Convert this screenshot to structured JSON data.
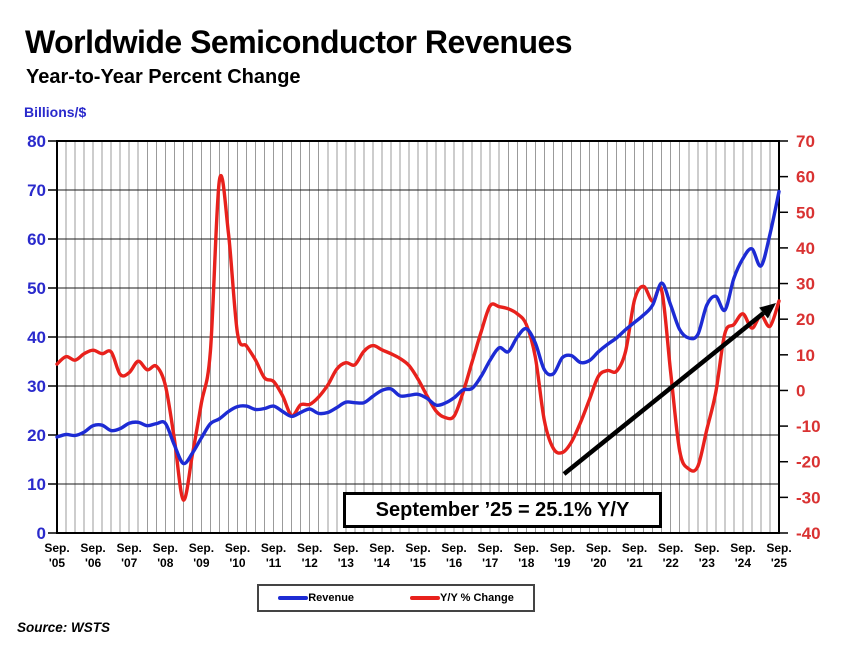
{
  "header": {
    "title": "Worldwide Semiconductor Revenues",
    "subtitle": "Year-to-Year Percent Change"
  },
  "axis_unit_label": "Billions/$",
  "source_note": "Source: WSTS",
  "annotation": {
    "text": "September ’25 = 25.1% Y/Y"
  },
  "legend": {
    "items": [
      {
        "label": "Revenue",
        "color": "#1d2bd4"
      },
      {
        "label": "Y/Y % Change",
        "color": "#e8211c"
      }
    ]
  },
  "colors": {
    "revenue_line": "#1d2bd4",
    "yoy_line": "#e8211c",
    "left_axis_text": "#2a2acc",
    "right_axis_text": "#d93232",
    "grid_vertical": "#9b9b9b",
    "grid_horizontal": "#1a1a1a",
    "frame": "#000000",
    "arrow": "#000000",
    "x_label_text": "#000000"
  },
  "chart_data": {
    "type": "line",
    "title": "Worldwide Semiconductor Revenues",
    "subtitle": "Year-to-Year Percent Change",
    "x_interval": "quarterly",
    "x_start": "Sep 2005",
    "x_end": "Sep 2025",
    "x_tick_month": "Sep.",
    "x_tick_years": [
      "'05",
      "'06",
      "'07",
      "'08",
      "'09",
      "'10",
      "'11",
      "'12",
      "'13",
      "'14",
      "'15",
      "'16",
      "'17",
      "'18",
      "'19",
      "'20",
      "'21",
      "'22",
      "'23",
      "'24",
      "'25"
    ],
    "left_axis": {
      "label": "Billions/$",
      "range": [
        0,
        80
      ],
      "ticks": [
        0,
        10,
        20,
        30,
        40,
        50,
        60,
        70,
        80
      ]
    },
    "right_axis": {
      "label": "Y/Y % Change",
      "range": [
        -40,
        70
      ],
      "ticks": [
        -40,
        -30,
        -20,
        -10,
        0,
        10,
        20,
        30,
        40,
        50,
        60,
        70
      ]
    },
    "grid": {
      "vertical": "quarterly",
      "horizontal": "every-10-left"
    },
    "legend_position": "bottom",
    "series": [
      {
        "name": "Revenue",
        "axis": "left",
        "color": "#1d2bd4",
        "values": [
          19.6,
          20.1,
          19.9,
          20.6,
          21.9,
          22.0,
          20.9,
          21.3,
          22.4,
          22.6,
          21.9,
          22.3,
          22.4,
          18.0,
          14.2,
          16.3,
          19.4,
          22.3,
          23.3,
          24.8,
          25.8,
          25.9,
          25.2,
          25.4,
          25.9,
          24.8,
          23.8,
          24.6,
          25.3,
          24.4,
          24.6,
          25.6,
          26.7,
          26.6,
          26.6,
          27.9,
          29.1,
          29.4,
          28.0,
          28.1,
          28.3,
          27.5,
          26.1,
          26.5,
          27.6,
          29.2,
          29.5,
          32.0,
          35.3,
          37.8,
          37.0,
          40.0,
          41.7,
          38.8,
          33.3,
          32.5,
          35.8,
          36.2,
          34.8,
          35.2,
          37.0,
          38.5,
          39.8,
          41.5,
          43.0,
          44.5,
          46.5,
          51.0,
          46.5,
          41.5,
          39.8,
          40.5,
          46.5,
          48.3,
          45.5,
          52.0,
          56.0,
          58.0,
          54.5,
          61.0,
          69.7
        ]
      },
      {
        "name": "Y/Y % Change",
        "axis": "right",
        "color": "#e8211c",
        "values": [
          7.4,
          9.5,
          8.5,
          10.3,
          11.3,
          10.3,
          10.8,
          4.5,
          5.0,
          8.2,
          5.8,
          6.8,
          1.5,
          -13.5,
          -30.7,
          -18.0,
          -3.5,
          11.0,
          59.0,
          44.0,
          16.0,
          12.5,
          8.5,
          3.5,
          2.5,
          -1.5,
          -7.0,
          -4.0,
          -3.9,
          -1.8,
          1.5,
          6.0,
          7.8,
          7.2,
          11.0,
          12.6,
          11.4,
          10.3,
          9.0,
          7.0,
          3.2,
          -1.5,
          -5.8,
          -7.6,
          -7.2,
          -0.5,
          8.0,
          16.5,
          23.8,
          23.5,
          22.9,
          21.5,
          18.5,
          9.4,
          -8.5,
          -16.3,
          -17.4,
          -14.5,
          -9.0,
          -2.5,
          4.0,
          5.6,
          5.4,
          11.0,
          25.5,
          29.2,
          25.0,
          28.0,
          5.0,
          -17.0,
          -22.0,
          -21.3,
          -11.0,
          -0.5,
          16.0,
          18.5,
          21.5,
          17.5,
          21.0,
          18.0,
          25.1
        ]
      }
    ],
    "highlight": {
      "label": "September ’25 = 25.1% Y/Y",
      "series": "Y/Y % Change",
      "x": "Sep 2025",
      "value": 25.1
    }
  }
}
